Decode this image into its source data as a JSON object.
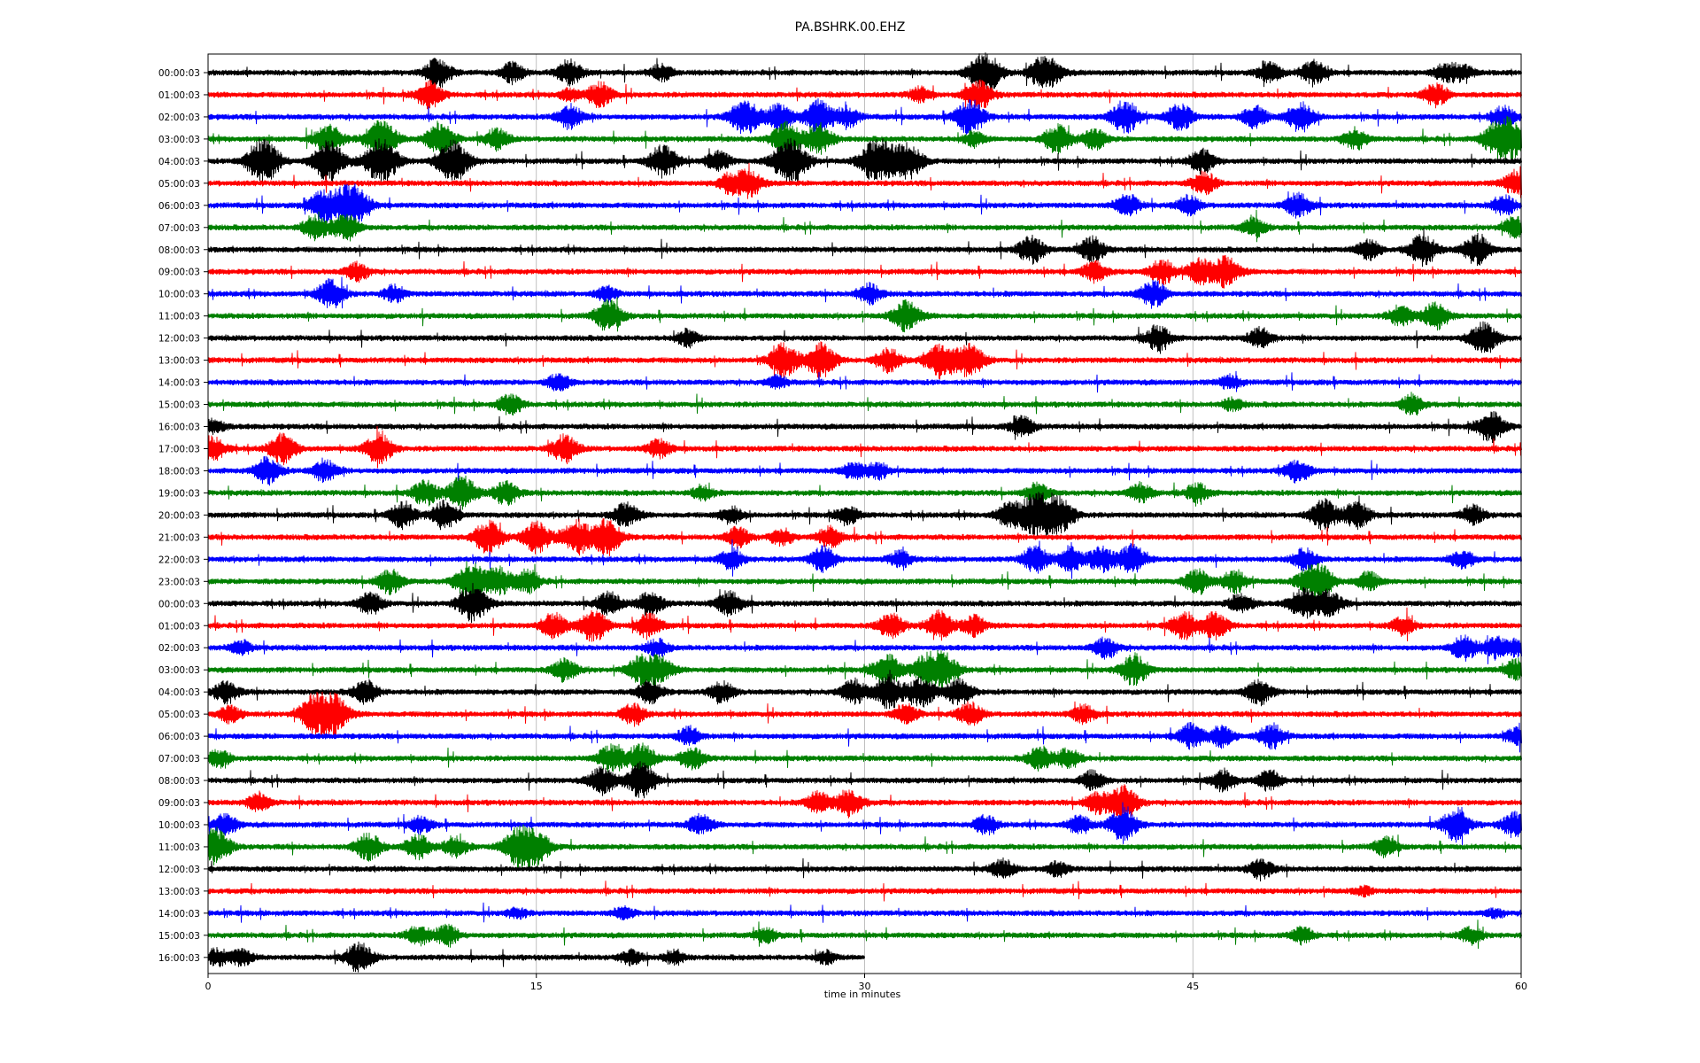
{
  "chart_data": {
    "type": "line",
    "title": "PA.BSHRK.00.EHZ",
    "xlabel": "time in minutes",
    "ylabel": "",
    "xlim": [
      0,
      60
    ],
    "x_ticks": [
      0,
      15,
      30,
      45,
      60
    ],
    "x_tick_labels": [
      "0",
      "15",
      "30",
      "45",
      "60"
    ],
    "grid_x": true,
    "colors_cycle": [
      "#000000",
      "#ff0000",
      "#0000ff",
      "#008000"
    ],
    "row_labels": [
      "00:00:03",
      "01:00:03",
      "02:00:03",
      "03:00:03",
      "04:00:03",
      "05:00:03",
      "06:00:03",
      "07:00:03",
      "08:00:03",
      "09:00:03",
      "10:00:03",
      "11:00:03",
      "12:00:03",
      "13:00:03",
      "14:00:03",
      "15:00:03",
      "16:00:03",
      "17:00:03",
      "18:00:03",
      "19:00:03",
      "20:00:03",
      "21:00:03",
      "22:00:03",
      "23:00:03",
      "00:00:03",
      "01:00:03",
      "02:00:03",
      "03:00:03",
      "04:00:03",
      "05:00:03",
      "06:00:03",
      "07:00:03",
      "08:00:03",
      "09:00:03",
      "10:00:03",
      "11:00:03",
      "12:00:03",
      "13:00:03",
      "14:00:03",
      "15:00:03",
      "16:00:03"
    ],
    "rows": [
      {
        "end": 60,
        "bursts": [
          [
            10.5,
            1.4
          ],
          [
            13.9,
            1.0
          ],
          [
            16.5,
            1.2
          ],
          [
            20.7,
            0.8
          ],
          [
            35.5,
            2.0
          ],
          [
            37.9,
            0.9
          ],
          [
            38.5,
            1.2
          ],
          [
            48.5,
            1.0
          ],
          [
            50.5,
            1.2
          ],
          [
            56.5,
            0.8
          ],
          [
            57.3,
            0.8
          ]
        ]
      },
      {
        "end": 60,
        "bursts": [
          [
            10.1,
            1.3
          ],
          [
            16.5,
            0.6
          ],
          [
            17.9,
            1.2
          ],
          [
            32.5,
            0.7
          ],
          [
            35.2,
            1.4
          ],
          [
            56.1,
            1.1
          ]
        ]
      },
      {
        "end": 60,
        "bursts": [
          [
            16.5,
            1.2
          ],
          [
            24.5,
            1.7
          ],
          [
            26.1,
            1.3
          ],
          [
            27.9,
            1.6
          ],
          [
            29.2,
            1.0
          ],
          [
            34.8,
            1.7
          ],
          [
            41.9,
            1.6
          ],
          [
            44.4,
            1.3
          ],
          [
            47.8,
            1.1
          ],
          [
            49.9,
            1.4
          ],
          [
            59.2,
            1.0
          ]
        ]
      },
      {
        "end": 60,
        "bursts": [
          [
            5.5,
            1.5
          ],
          [
            7.9,
            1.9
          ],
          [
            10.6,
            1.6
          ],
          [
            13.2,
            1.0
          ],
          [
            26.4,
            1.6
          ],
          [
            27.9,
            1.5
          ],
          [
            35.0,
            0.7
          ],
          [
            38.8,
            1.4
          ],
          [
            40.5,
            1.0
          ],
          [
            52.4,
            1.0
          ],
          [
            58.7,
            1.1
          ],
          [
            59.5,
            2.0
          ]
        ]
      },
      {
        "end": 60,
        "bursts": [
          [
            2.5,
            2.2
          ],
          [
            5.5,
            2.0
          ],
          [
            7.9,
            2.2
          ],
          [
            11.2,
            2.0
          ],
          [
            20.8,
            1.6
          ],
          [
            23.3,
            1.0
          ],
          [
            26.6,
            2.3
          ],
          [
            30.6,
            2.3
          ],
          [
            32.0,
            1.7
          ],
          [
            45.4,
            1.1
          ]
        ]
      },
      {
        "end": 60,
        "bursts": [
          [
            23.8,
            0.9
          ],
          [
            24.7,
            1.3
          ],
          [
            45.5,
            1.1
          ],
          [
            59.8,
            1.3
          ]
        ]
      },
      {
        "end": 60,
        "bursts": [
          [
            5.2,
            1.4
          ],
          [
            6.5,
            2.3
          ],
          [
            42.0,
            1.1
          ],
          [
            44.8,
            0.9
          ],
          [
            49.8,
            1.2
          ],
          [
            59.2,
            1.0
          ]
        ]
      },
      {
        "end": 60,
        "bursts": [
          [
            4.9,
            1.2
          ],
          [
            6.3,
            1.3
          ],
          [
            47.8,
            0.9
          ],
          [
            59.7,
            1.0
          ]
        ]
      },
      {
        "end": 60,
        "bursts": [
          [
            37.6,
            1.3
          ],
          [
            40.4,
            1.2
          ],
          [
            53.0,
            1.0
          ],
          [
            55.5,
            1.5
          ],
          [
            58.0,
            1.5
          ]
        ]
      },
      {
        "end": 60,
        "bursts": [
          [
            6.8,
            0.9
          ],
          [
            40.5,
            1.0
          ],
          [
            43.6,
            1.2
          ],
          [
            45.3,
            1.2
          ],
          [
            46.5,
            1.5
          ]
        ]
      },
      {
        "end": 60,
        "bursts": [
          [
            5.6,
            1.4
          ],
          [
            8.5,
            0.8
          ],
          [
            18.2,
            0.7
          ],
          [
            30.2,
            1.0
          ],
          [
            43.2,
            1.3
          ]
        ]
      },
      {
        "end": 60,
        "bursts": [
          [
            18.3,
            1.5
          ],
          [
            31.9,
            1.5
          ],
          [
            54.5,
            1.0
          ],
          [
            56.1,
            1.3
          ]
        ]
      },
      {
        "end": 60,
        "bursts": [
          [
            21.9,
            0.8
          ],
          [
            43.4,
            1.2
          ],
          [
            48.1,
            1.0
          ],
          [
            58.3,
            1.5
          ]
        ]
      },
      {
        "end": 60,
        "bursts": [
          [
            26.3,
            1.6
          ],
          [
            28.0,
            1.7
          ],
          [
            31.1,
            1.1
          ],
          [
            33.5,
            1.7
          ],
          [
            34.8,
            1.6
          ]
        ]
      },
      {
        "end": 60,
        "bursts": [
          [
            16.0,
            0.8
          ],
          [
            26.0,
            0.6
          ],
          [
            46.7,
            0.7
          ]
        ]
      },
      {
        "end": 60,
        "bursts": [
          [
            13.8,
            1.0
          ],
          [
            46.8,
            0.6
          ],
          [
            55.0,
            1.0
          ]
        ]
      },
      {
        "end": 60,
        "bursts": [
          [
            0.2,
            0.8
          ],
          [
            37.2,
            1.0
          ],
          [
            58.6,
            1.5
          ]
        ]
      },
      {
        "end": 60,
        "bursts": [
          [
            0.2,
            1.2
          ],
          [
            3.4,
            1.4
          ],
          [
            7.8,
            1.5
          ],
          [
            16.3,
            1.3
          ],
          [
            20.6,
            0.9
          ]
        ]
      },
      {
        "end": 60,
        "bursts": [
          [
            2.7,
            1.3
          ],
          [
            5.3,
            1.1
          ],
          [
            29.5,
            0.8
          ],
          [
            30.6,
            0.8
          ],
          [
            49.8,
            1.1
          ]
        ]
      },
      {
        "end": 60,
        "bursts": [
          [
            9.9,
            1.2
          ],
          [
            11.6,
            1.6
          ],
          [
            13.6,
            1.2
          ],
          [
            22.6,
            0.7
          ],
          [
            37.9,
            1.0
          ],
          [
            42.6,
            0.9
          ],
          [
            45.2,
            0.9
          ]
        ]
      },
      {
        "end": 60,
        "bursts": [
          [
            8.9,
            1.3
          ],
          [
            10.8,
            1.3
          ],
          [
            19.1,
            1.2
          ],
          [
            23.9,
            0.8
          ],
          [
            29.2,
            0.9
          ],
          [
            36.6,
            1.2
          ],
          [
            37.9,
            2.3
          ],
          [
            39.0,
            1.5
          ],
          [
            51.0,
            1.5
          ],
          [
            52.5,
            1.3
          ],
          [
            57.8,
            0.9
          ]
        ]
      },
      {
        "end": 60,
        "bursts": [
          [
            12.8,
            1.6
          ],
          [
            15.0,
            1.5
          ],
          [
            16.8,
            1.7
          ],
          [
            18.2,
            1.7
          ],
          [
            24.2,
            1.0
          ],
          [
            26.2,
            0.8
          ],
          [
            28.4,
            1.0
          ]
        ]
      },
      {
        "end": 60,
        "bursts": [
          [
            23.9,
            1.0
          ],
          [
            28.1,
            1.2
          ],
          [
            31.6,
            0.8
          ],
          [
            37.8,
            1.3
          ],
          [
            39.4,
            1.2
          ],
          [
            40.8,
            1.2
          ],
          [
            42.2,
            1.4
          ],
          [
            50.1,
            1.0
          ],
          [
            57.3,
            0.9
          ]
        ]
      },
      {
        "end": 60,
        "bursts": [
          [
            8.3,
            1.2
          ],
          [
            12.0,
            1.9
          ],
          [
            13.3,
            1.3
          ],
          [
            14.6,
            1.1
          ],
          [
            45.2,
            1.2
          ],
          [
            46.9,
            1.1
          ],
          [
            50.3,
            1.3
          ],
          [
            51.0,
            1.1
          ],
          [
            53.0,
            0.9
          ]
        ]
      },
      {
        "end": 60,
        "bursts": [
          [
            7.4,
            1.1
          ],
          [
            12.1,
            1.8
          ],
          [
            18.3,
            1.1
          ],
          [
            20.2,
            1.2
          ],
          [
            23.8,
            1.2
          ],
          [
            47.2,
            1.0
          ],
          [
            50.0,
            1.4
          ],
          [
            51.2,
            1.3
          ]
        ]
      },
      {
        "end": 60,
        "bursts": [
          [
            15.8,
            1.2
          ],
          [
            17.6,
            1.5
          ],
          [
            20.1,
            1.2
          ],
          [
            31.2,
            1.2
          ],
          [
            33.4,
            1.4
          ],
          [
            35.0,
            1.0
          ],
          [
            44.6,
            1.3
          ],
          [
            46.0,
            1.3
          ],
          [
            54.6,
            0.9
          ]
        ]
      },
      {
        "end": 60,
        "bursts": [
          [
            1.5,
            0.7
          ],
          [
            20.5,
            0.8
          ],
          [
            41.0,
            1.0
          ],
          [
            57.4,
            1.2
          ],
          [
            58.8,
            1.0
          ],
          [
            59.8,
            0.8
          ]
        ]
      },
      {
        "end": 60,
        "bursts": [
          [
            16.3,
            1.1
          ],
          [
            19.8,
            1.4
          ],
          [
            20.7,
            1.2
          ],
          [
            31.0,
            1.6
          ],
          [
            32.8,
            1.4
          ],
          [
            33.6,
            1.6
          ],
          [
            42.3,
            1.5
          ],
          [
            59.8,
            1.0
          ]
        ]
      },
      {
        "end": 60,
        "bursts": [
          [
            0.8,
            1.1
          ],
          [
            7.2,
            1.1
          ],
          [
            20.2,
            1.1
          ],
          [
            23.5,
            1.0
          ],
          [
            29.5,
            1.2
          ],
          [
            31.1,
            1.6
          ],
          [
            32.6,
            1.4
          ],
          [
            34.3,
            1.3
          ],
          [
            48.0,
            1.2
          ]
        ]
      },
      {
        "end": 60,
        "bursts": [
          [
            1.0,
            0.8
          ],
          [
            5.0,
            2.2
          ],
          [
            5.9,
            1.4
          ],
          [
            19.4,
            1.0
          ],
          [
            31.9,
            1.0
          ],
          [
            34.8,
            1.1
          ],
          [
            40.0,
            0.9
          ]
        ]
      },
      {
        "end": 60,
        "bursts": [
          [
            22.0,
            0.9
          ],
          [
            44.9,
            1.2
          ],
          [
            46.3,
            1.0
          ],
          [
            48.6,
            1.2
          ],
          [
            59.8,
            0.8
          ]
        ]
      },
      {
        "end": 60,
        "bursts": [
          [
            0.5,
            0.8
          ],
          [
            18.4,
            1.3
          ],
          [
            19.8,
            1.4
          ],
          [
            22.1,
            1.1
          ],
          [
            38.0,
            1.1
          ],
          [
            39.3,
            1.0
          ]
        ]
      },
      {
        "end": 60,
        "bursts": [
          [
            18.0,
            1.3
          ],
          [
            19.8,
            1.7
          ],
          [
            40.4,
            0.9
          ],
          [
            46.4,
            1.0
          ],
          [
            48.5,
            1.0
          ]
        ]
      },
      {
        "end": 60,
        "bursts": [
          [
            2.3,
            0.9
          ],
          [
            27.9,
            1.1
          ],
          [
            29.3,
            1.3
          ],
          [
            40.6,
            1.0
          ],
          [
            41.8,
            1.7
          ]
        ]
      },
      {
        "end": 60,
        "bursts": [
          [
            0.8,
            1.0
          ],
          [
            9.7,
            0.8
          ],
          [
            22.5,
            1.0
          ],
          [
            35.5,
            0.9
          ],
          [
            39.8,
            0.9
          ],
          [
            41.8,
            1.6
          ],
          [
            57.0,
            1.6
          ],
          [
            59.7,
            1.2
          ]
        ]
      },
      {
        "end": 60,
        "bursts": [
          [
            0.3,
            1.8
          ],
          [
            7.3,
            1.3
          ],
          [
            9.6,
            1.2
          ],
          [
            11.3,
            1.0
          ],
          [
            14.2,
            2.0
          ],
          [
            15.0,
            1.5
          ],
          [
            53.8,
            0.9
          ]
        ]
      },
      {
        "end": 60,
        "bursts": [
          [
            36.3,
            0.9
          ],
          [
            38.8,
            0.7
          ],
          [
            48.1,
            1.0
          ]
        ]
      },
      {
        "end": 60,
        "bursts": [
          [
            52.8,
            0.4
          ]
        ]
      },
      {
        "end": 60,
        "bursts": [
          [
            14.1,
            0.5
          ],
          [
            19.0,
            0.6
          ],
          [
            58.8,
            0.4
          ]
        ]
      },
      {
        "end": 60,
        "bursts": [
          [
            9.6,
            1.0
          ],
          [
            10.9,
            1.0
          ],
          [
            25.5,
            0.7
          ],
          [
            50.0,
            0.8
          ],
          [
            57.7,
            0.8
          ]
        ]
      },
      {
        "end": 30,
        "bursts": [
          [
            0.4,
            0.8
          ],
          [
            1.5,
            0.8
          ],
          [
            6.9,
            1.4
          ],
          [
            19.3,
            0.7
          ],
          [
            21.3,
            0.7
          ],
          [
            28.2,
            0.6
          ]
        ]
      }
    ]
  }
}
